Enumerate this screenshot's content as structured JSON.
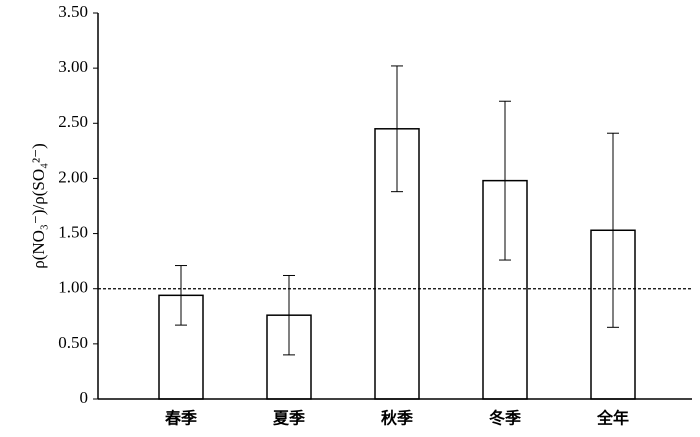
{
  "chart_data": {
    "type": "bar",
    "y_label": "ρ(NO₃⁻)/ρ(SO₄²⁻)",
    "categories": [
      "春季",
      "夏季",
      "秋季",
      "冬季",
      "全年"
    ],
    "values": [
      0.94,
      0.76,
      2.45,
      1.98,
      1.53
    ],
    "errors": [
      0.27,
      0.36,
      0.57,
      0.72,
      0.88
    ],
    "color": "#ffffff",
    "reference_line": 1,
    "ylim": [
      0,
      3.5
    ],
    "yticks": [
      0,
      {
        "value": 0.5,
        "label": "0.50"
      },
      {
        "value": 1,
        "label": "1.00"
      },
      {
        "value": 1.5,
        "label": "1.50"
      },
      {
        "value": 2,
        "label": "2.00"
      },
      {
        "value": 2.5,
        "label": "2.50"
      },
      {
        "value": 3,
        "label": "3.00"
      },
      {
        "value": 3.5,
        "label": "3.50"
      }
    ],
    "grid": false
  }
}
